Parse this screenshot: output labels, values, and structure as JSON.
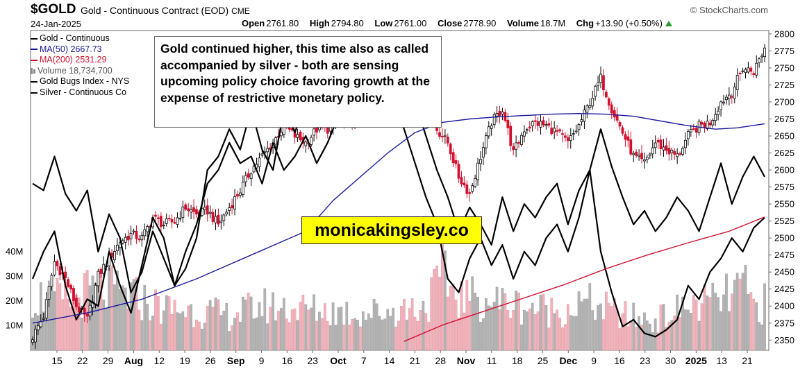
{
  "header": {
    "symbol": "$GOLD",
    "description": "Gold - Continuous Contract (EOD)",
    "exchange": "CME",
    "source": "© StockCharts.com",
    "date": "24-Jan-2025",
    "open_label": "Open",
    "open": "2761.80",
    "high_label": "High",
    "high": "2794.80",
    "low_label": "Low",
    "low": "2761.00",
    "close_label": "Close",
    "close": "2778.90",
    "volume_label": "Volume",
    "volume": "18.7M",
    "chg_label": "Chg",
    "chg": "+13.90 (+0.50%)"
  },
  "legend": {
    "gold": "Gold - Continuous",
    "ma50": "MA(50) 2667.73",
    "ma200": "MA(200) 2531.29",
    "volume": "Volume 18,734,700",
    "gold_bugs": "Gold Bugs Index - NYS",
    "silver": "Silver - Continuous Co"
  },
  "annotation": "Gold continued higher, this time also as called accompanied by silver - both are sensing upcoming policy choice favoring growth at the expense of restrictive monetary policy.",
  "watermark": "monicakingsley.co",
  "colors": {
    "up": "#000000",
    "down": "#d2112f",
    "ma50": "#1a1a9e",
    "ma200": "#d2112f",
    "vol_up": "#b3b3b3",
    "vol_down": "#f0b3bb"
  },
  "chart_data": {
    "type": "candlestick",
    "y_range": [
      2335,
      2805
    ],
    "y_ticks": [
      2350,
      2375,
      2400,
      2425,
      2450,
      2475,
      2500,
      2525,
      2550,
      2575,
      2600,
      2625,
      2650,
      2675,
      2700,
      2725,
      2750,
      2775,
      2800
    ],
    "volume_axis_ticks": [
      "10M",
      "20M",
      "30M",
      "40M"
    ],
    "x_tick_labels": [
      {
        "text": "15",
        "bold": false
      },
      {
        "text": "22",
        "bold": false
      },
      {
        "text": "29",
        "bold": false
      },
      {
        "text": "Aug",
        "bold": true
      },
      {
        "text": "12",
        "bold": false
      },
      {
        "text": "19",
        "bold": false
      },
      {
        "text": "26",
        "bold": false
      },
      {
        "text": "Sep",
        "bold": true
      },
      {
        "text": "9",
        "bold": false
      },
      {
        "text": "16",
        "bold": false
      },
      {
        "text": "23",
        "bold": false
      },
      {
        "text": "Oct",
        "bold": true
      },
      {
        "text": "7",
        "bold": false
      },
      {
        "text": "14",
        "bold": false
      },
      {
        "text": "21",
        "bold": false
      },
      {
        "text": "28",
        "bold": false
      },
      {
        "text": "Nov",
        "bold": true
      },
      {
        "text": "11",
        "bold": false
      },
      {
        "text": "18",
        "bold": false
      },
      {
        "text": "25",
        "bold": false
      },
      {
        "text": "Dec",
        "bold": true
      },
      {
        "text": "9",
        "bold": false
      },
      {
        "text": "16",
        "bold": false
      },
      {
        "text": "23",
        "bold": false
      },
      {
        "text": "30",
        "bold": false
      },
      {
        "text": "2025",
        "bold": true
      },
      {
        "text": "13",
        "bold": false
      },
      {
        "text": "21",
        "bold": false
      }
    ],
    "close_path": [
      [
        0,
        2355
      ],
      [
        4,
        2385
      ],
      [
        8,
        2465
      ],
      [
        12,
        2440
      ],
      [
        16,
        2400
      ],
      [
        20,
        2380
      ],
      [
        24,
        2445
      ],
      [
        28,
        2470
      ],
      [
        32,
        2495
      ],
      [
        36,
        2505
      ],
      [
        40,
        2500
      ],
      [
        44,
        2530
      ],
      [
        48,
        2520
      ],
      [
        52,
        2525
      ],
      [
        56,
        2545
      ],
      [
        60,
        2535
      ],
      [
        64,
        2540
      ],
      [
        68,
        2520
      ],
      [
        72,
        2545
      ],
      [
        76,
        2570
      ],
      [
        80,
        2600
      ],
      [
        84,
        2620
      ],
      [
        88,
        2640
      ],
      [
        92,
        2665
      ],
      [
        96,
        2650
      ],
      [
        100,
        2640
      ],
      [
        104,
        2660
      ],
      [
        108,
        2660
      ],
      [
        112,
        2675
      ],
      [
        116,
        2665
      ],
      [
        120,
        2700
      ],
      [
        124,
        2725
      ],
      [
        128,
        2745
      ],
      [
        132,
        2770
      ],
      [
        136,
        2750
      ],
      [
        140,
        2740
      ],
      [
        144,
        2710
      ],
      [
        148,
        2660
      ],
      [
        152,
        2640
      ],
      [
        156,
        2590
      ],
      [
        160,
        2565
      ],
      [
        164,
        2620
      ],
      [
        168,
        2670
      ],
      [
        172,
        2690
      ],
      [
        176,
        2625
      ],
      [
        180,
        2660
      ],
      [
        184,
        2670
      ],
      [
        188,
        2665
      ],
      [
        192,
        2655
      ],
      [
        196,
        2640
      ],
      [
        200,
        2665
      ],
      [
        204,
        2700
      ],
      [
        208,
        2735
      ],
      [
        212,
        2690
      ],
      [
        216,
        2655
      ],
      [
        220,
        2620
      ],
      [
        224,
        2610
      ],
      [
        228,
        2640
      ],
      [
        232,
        2630
      ],
      [
        236,
        2620
      ],
      [
        240,
        2650
      ],
      [
        244,
        2665
      ],
      [
        248,
        2670
      ],
      [
        252,
        2700
      ],
      [
        256,
        2715
      ],
      [
        260,
        2750
      ],
      [
        264,
        2745
      ],
      [
        268,
        2779
      ]
    ],
    "ma50_path": [
      [
        0,
        2375
      ],
      [
        20,
        2390
      ],
      [
        40,
        2410
      ],
      [
        60,
        2440
      ],
      [
        80,
        2475
      ],
      [
        100,
        2510
      ],
      [
        110,
        2555
      ],
      [
        120,
        2590
      ],
      [
        130,
        2625
      ],
      [
        140,
        2655
      ],
      [
        150,
        2670
      ],
      [
        160,
        2675
      ],
      [
        170,
        2678
      ],
      [
        180,
        2680
      ],
      [
        190,
        2682
      ],
      [
        200,
        2683
      ],
      [
        210,
        2682
      ],
      [
        220,
        2679
      ],
      [
        230,
        2672
      ],
      [
        240,
        2665
      ],
      [
        250,
        2660
      ],
      [
        258,
        2662
      ],
      [
        268,
        2668
      ]
    ],
    "ma200_path": [
      [
        136,
        2348
      ],
      [
        150,
        2372
      ],
      [
        165,
        2392
      ],
      [
        180,
        2412
      ],
      [
        195,
        2432
      ],
      [
        210,
        2455
      ],
      [
        225,
        2475
      ],
      [
        240,
        2493
      ],
      [
        255,
        2510
      ],
      [
        268,
        2531
      ]
    ],
    "gold_bugs_path": [
      [
        0,
        2580
      ],
      [
        4,
        2570
      ],
      [
        8,
        2620
      ],
      [
        12,
        2565
      ],
      [
        16,
        2540
      ],
      [
        20,
        2570
      ],
      [
        24,
        2480
      ],
      [
        28,
        2535
      ],
      [
        32,
        2500
      ],
      [
        36,
        2420
      ],
      [
        40,
        2450
      ],
      [
        44,
        2510
      ],
      [
        48,
        2470
      ],
      [
        52,
        2430
      ],
      [
        56,
        2455
      ],
      [
        60,
        2500
      ],
      [
        64,
        2600
      ],
      [
        68,
        2620
      ],
      [
        72,
        2660
      ],
      [
        76,
        2630
      ],
      [
        80,
        2690
      ],
      [
        84,
        2630
      ],
      [
        88,
        2600
      ],
      [
        92,
        2690
      ],
      [
        96,
        2655
      ],
      [
        100,
        2700
      ],
      [
        104,
        2665
      ],
      [
        108,
        2720
      ],
      [
        112,
        2690
      ],
      [
        116,
        2700
      ],
      [
        120,
        2730
      ],
      [
        124,
        2690
      ],
      [
        128,
        2760
      ],
      [
        132,
        2720
      ],
      [
        136,
        2690
      ],
      [
        140,
        2700
      ],
      [
        144,
        2650
      ],
      [
        148,
        2600
      ],
      [
        152,
        2560
      ],
      [
        156,
        2510
      ],
      [
        160,
        2545
      ],
      [
        164,
        2520
      ],
      [
        168,
        2490
      ],
      [
        172,
        2560
      ],
      [
        176,
        2510
      ],
      [
        180,
        2550
      ],
      [
        184,
        2530
      ],
      [
        188,
        2560
      ],
      [
        192,
        2580
      ],
      [
        196,
        2520
      ],
      [
        200,
        2570
      ],
      [
        204,
        2600
      ],
      [
        208,
        2660
      ],
      [
        212,
        2605
      ],
      [
        216,
        2560
      ],
      [
        220,
        2520
      ],
      [
        224,
        2540
      ],
      [
        228,
        2510
      ],
      [
        232,
        2530
      ],
      [
        236,
        2560
      ],
      [
        240,
        2540
      ],
      [
        244,
        2510
      ],
      [
        248,
        2560
      ],
      [
        252,
        2610
      ],
      [
        256,
        2550
      ],
      [
        260,
        2590
      ],
      [
        264,
        2620
      ],
      [
        268,
        2590
      ]
    ],
    "silver_path": [
      [
        0,
        2440
      ],
      [
        4,
        2480
      ],
      [
        8,
        2510
      ],
      [
        12,
        2430
      ],
      [
        16,
        2380
      ],
      [
        20,
        2410
      ],
      [
        24,
        2400
      ],
      [
        28,
        2480
      ],
      [
        32,
        2430
      ],
      [
        36,
        2390
      ],
      [
        40,
        2460
      ],
      [
        44,
        2530
      ],
      [
        48,
        2500
      ],
      [
        52,
        2430
      ],
      [
        56,
        2480
      ],
      [
        60,
        2520
      ],
      [
        64,
        2580
      ],
      [
        68,
        2600
      ],
      [
        72,
        2640
      ],
      [
        76,
        2610
      ],
      [
        80,
        2620
      ],
      [
        84,
        2580
      ],
      [
        88,
        2640
      ],
      [
        92,
        2600
      ],
      [
        96,
        2620
      ],
      [
        100,
        2650
      ],
      [
        104,
        2610
      ],
      [
        108,
        2640
      ],
      [
        112,
        2680
      ],
      [
        116,
        2720
      ],
      [
        120,
        2700
      ],
      [
        124,
        2760
      ],
      [
        128,
        2740
      ],
      [
        132,
        2700
      ],
      [
        136,
        2660
      ],
      [
        140,
        2610
      ],
      [
        144,
        2560
      ],
      [
        148,
        2520
      ],
      [
        152,
        2440
      ],
      [
        156,
        2420
      ],
      [
        160,
        2470
      ],
      [
        164,
        2500
      ],
      [
        168,
        2460
      ],
      [
        172,
        2490
      ],
      [
        176,
        2440
      ],
      [
        180,
        2480
      ],
      [
        184,
        2460
      ],
      [
        188,
        2500
      ],
      [
        192,
        2520
      ],
      [
        196,
        2480
      ],
      [
        200,
        2530
      ],
      [
        204,
        2600
      ],
      [
        208,
        2480
      ],
      [
        212,
        2420
      ],
      [
        216,
        2370
      ],
      [
        220,
        2380
      ],
      [
        224,
        2360
      ],
      [
        228,
        2355
      ],
      [
        232,
        2365
      ],
      [
        236,
        2380
      ],
      [
        240,
        2430
      ],
      [
        244,
        2410
      ],
      [
        248,
        2450
      ],
      [
        252,
        2470
      ],
      [
        256,
        2500
      ],
      [
        260,
        2480
      ],
      [
        264,
        2515
      ],
      [
        268,
        2530
      ]
    ],
    "volume_path": [
      [
        0,
        22
      ],
      [
        12,
        20
      ],
      [
        24,
        25
      ],
      [
        36,
        22
      ],
      [
        48,
        17
      ],
      [
        60,
        16
      ],
      [
        72,
        14
      ],
      [
        84,
        18
      ],
      [
        96,
        17
      ],
      [
        108,
        16
      ],
      [
        120,
        15
      ],
      [
        132,
        16
      ],
      [
        144,
        18
      ],
      [
        150,
        30
      ],
      [
        156,
        22
      ],
      [
        168,
        20
      ],
      [
        180,
        18
      ],
      [
        192,
        16
      ],
      [
        204,
        19
      ],
      [
        216,
        14
      ],
      [
        228,
        12
      ],
      [
        240,
        18
      ],
      [
        252,
        20
      ],
      [
        260,
        26
      ],
      [
        264,
        18
      ],
      [
        268,
        19
      ]
    ]
  }
}
